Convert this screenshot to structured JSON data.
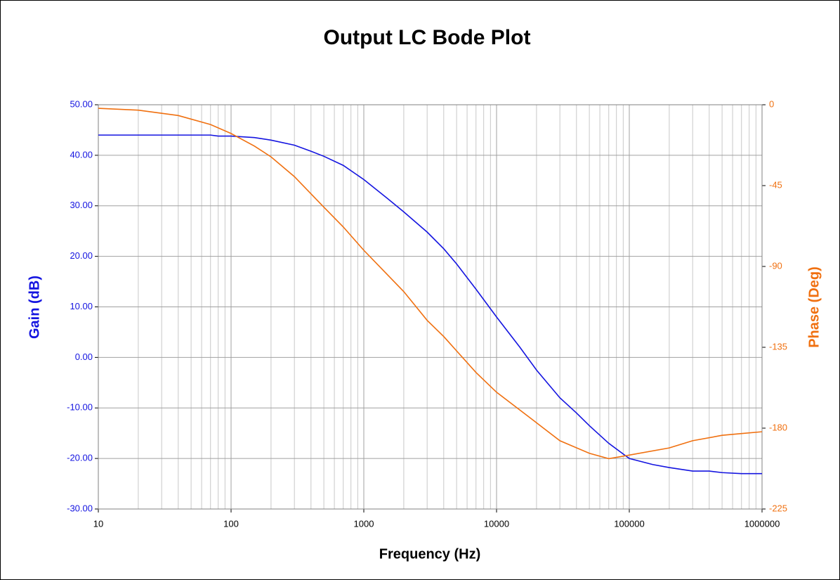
{
  "chart_data": {
    "type": "line",
    "title": "Output LC Bode Plot",
    "x_label": "Frequency (Hz)",
    "y_label": "Gain (dB)",
    "y2_label": "Phase (Deg)",
    "xscale": "log",
    "grid": true,
    "minor_grid": true,
    "xlim": [
      10,
      1000000
    ],
    "xticks": [
      10,
      100,
      1000,
      10000,
      100000,
      1000000
    ],
    "ylim": [
      -30,
      50
    ],
    "yticks": [
      {
        "value": -30,
        "label": "-30.00"
      },
      {
        "value": -20,
        "label": "-20.00"
      },
      {
        "value": -10,
        "label": "-10.00"
      },
      {
        "value": 0,
        "label": "0.00"
      },
      {
        "value": 10,
        "label": "10.00"
      },
      {
        "value": 20,
        "label": "20.00"
      },
      {
        "value": 30,
        "label": "30.00"
      },
      {
        "value": 40,
        "label": "40.00"
      },
      {
        "value": 50,
        "label": "50.00"
      }
    ],
    "y2lim": [
      -225,
      0
    ],
    "y2ticks": [
      -225,
      -180,
      -135,
      -90,
      -45,
      0
    ],
    "series": [
      {
        "name": "Gain",
        "color": "#1414e0",
        "axis": "y",
        "x": [
          10,
          20,
          50,
          70,
          80,
          100,
          150,
          200,
          300,
          400,
          500,
          700,
          1000,
          1500,
          2000,
          3000,
          4000,
          5000,
          7000,
          10000,
          15000,
          20000,
          30000,
          40000,
          50000,
          70000,
          100000,
          150000,
          200000,
          300000,
          400000,
          500000,
          700000,
          1000000
        ],
        "values": [
          44,
          44,
          44,
          44,
          43.8,
          43.8,
          43.5,
          43,
          42,
          40.8,
          39.8,
          38,
          35.2,
          31.5,
          28.8,
          24.8,
          21.5,
          18.5,
          13.5,
          8,
          2,
          -2.5,
          -8,
          -11,
          -13.5,
          -17,
          -20,
          -21.2,
          -21.8,
          -22.5,
          -22.5,
          -22.8,
          -23,
          -23
        ]
      },
      {
        "name": "Phase",
        "color": "#f07010",
        "axis": "y2",
        "x": [
          10,
          20,
          40,
          70,
          100,
          150,
          200,
          300,
          500,
          700,
          1000,
          2000,
          3000,
          4000,
          5000,
          7000,
          10000,
          20000,
          30000,
          50000,
          70000,
          100000,
          200000,
          300000,
          500000,
          700000,
          1000000
        ],
        "values": [
          -2,
          -3,
          -6,
          -11,
          -16,
          -23,
          -29,
          -40,
          -57,
          -68,
          -81,
          -104,
          -120,
          -129,
          -137,
          -149,
          -160,
          -177,
          -187,
          -194,
          -197,
          -195,
          -191,
          -187,
          -184,
          -183,
          -182
        ]
      }
    ]
  }
}
